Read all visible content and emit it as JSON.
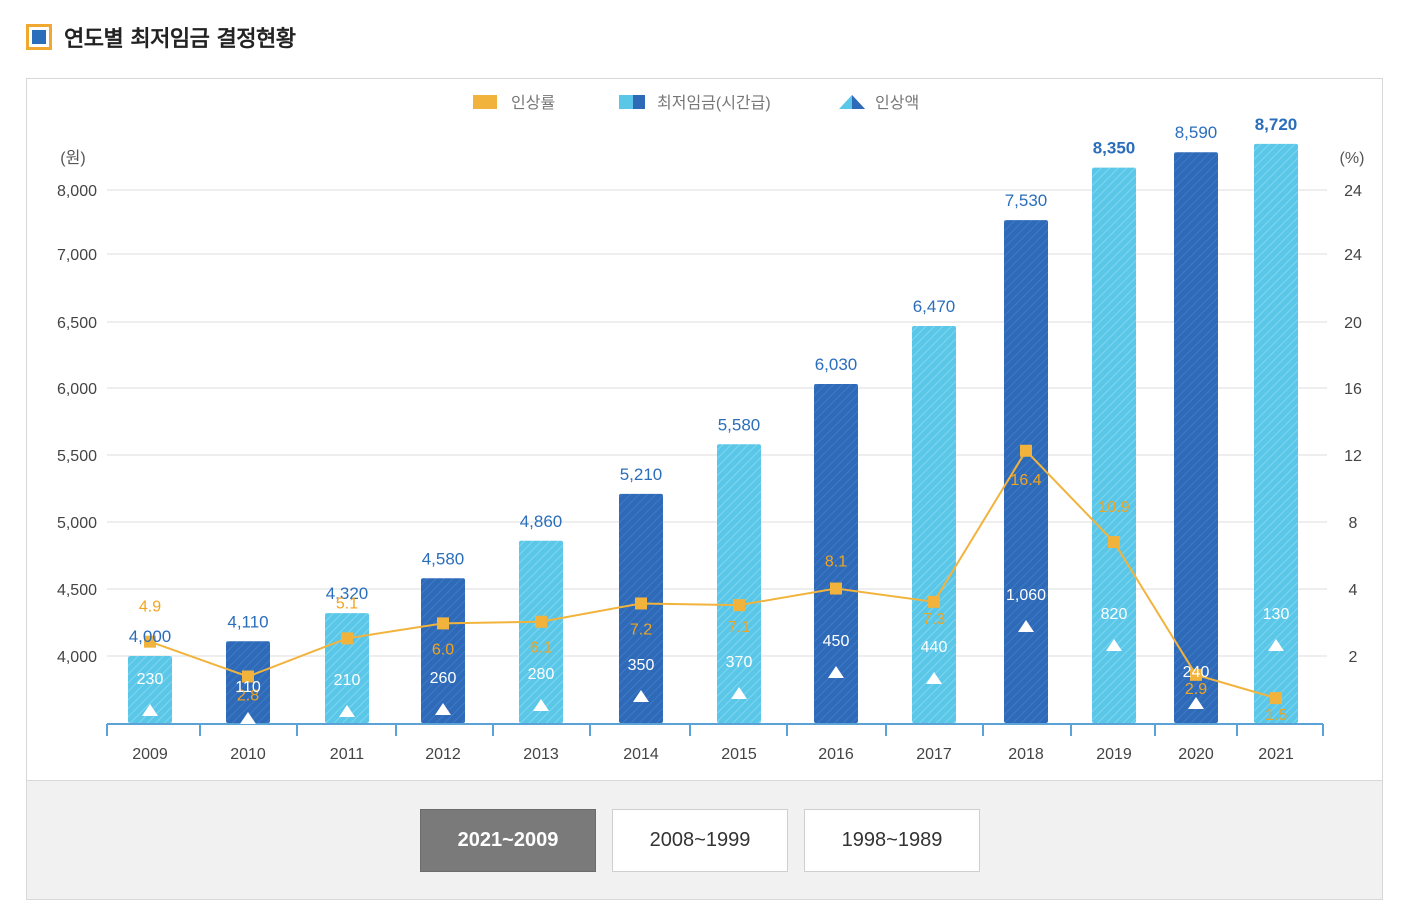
{
  "page_title": "연도별 최저임금 결정현황",
  "range_buttons": [
    "2021~2009",
    "2008~1999",
    "1998~1989"
  ],
  "active_range_index": 0,
  "colors": {
    "bar_light": "#5bc7e8",
    "bar_dark": "#2e6ab8",
    "line": "#f2b33d",
    "left_label": "#2a6ebb",
    "rate_label": "#f2a41e",
    "axis": "#5ba3d6"
  },
  "chart_data": {
    "type": "bar",
    "legend": [
      {
        "label": "인상률",
        "icon": "orange-square-icon"
      },
      {
        "label": "최저임금(시간급)",
        "icon": "blue-bar-icon"
      },
      {
        "label": "인상액",
        "icon": "triangle-icon"
      }
    ],
    "y_left_unit": "(원)",
    "y_right_unit": "(%)",
    "y_left_ticks": [
      "8,000",
      "7,000",
      "6,500",
      "6,000",
      "5,500",
      "5,000",
      "4,500",
      "4,000"
    ],
    "y_right_ticks": [
      "24",
      "24",
      "20",
      "16",
      "12",
      "8",
      "4",
      "2"
    ],
    "categories": [
      "2009",
      "2010",
      "2011",
      "2012",
      "2013",
      "2014",
      "2015",
      "2016",
      "2017",
      "2018",
      "2019",
      "2020",
      "2021"
    ],
    "series": [
      {
        "name": "최저임금(시간급)",
        "values": [
          4000,
          4110,
          4320,
          4580,
          4860,
          5210,
          5580,
          6030,
          6470,
          7530,
          8350,
          8590,
          8720
        ]
      },
      {
        "name": "인상률",
        "values": [
          4.9,
          2.8,
          5.1,
          6.0,
          6.1,
          7.2,
          7.1,
          8.1,
          7.3,
          16.4,
          10.9,
          2.9,
          1.5
        ]
      },
      {
        "name": "인상액",
        "values": [
          230,
          110,
          210,
          260,
          280,
          350,
          370,
          450,
          440,
          1060,
          820,
          240,
          130
        ]
      }
    ],
    "wage_labels": [
      "4,000",
      "4,110",
      "4,320",
      "4,580",
      "4,860",
      "5,210",
      "5,580",
      "6,030",
      "6,470",
      "7,530",
      "8,350",
      "8,590",
      "8,720"
    ],
    "rate_labels": [
      "4.9",
      "2.8",
      "5.1",
      "6.0",
      "6.1",
      "7.2",
      "7.1",
      "8.1",
      "7.3",
      "16.4",
      "10.9",
      "2.9",
      "1.5"
    ],
    "increase_labels": [
      "230",
      "110",
      "210",
      "260",
      "280",
      "350",
      "370",
      "450",
      "440",
      "1,060",
      "820",
      "240",
      "130"
    ],
    "bar_shade": [
      "light",
      "dark",
      "light",
      "dark",
      "light",
      "dark",
      "light",
      "dark",
      "light",
      "dark",
      "light",
      "dark",
      "light"
    ],
    "grid": true,
    "legend_position": "top-center"
  }
}
